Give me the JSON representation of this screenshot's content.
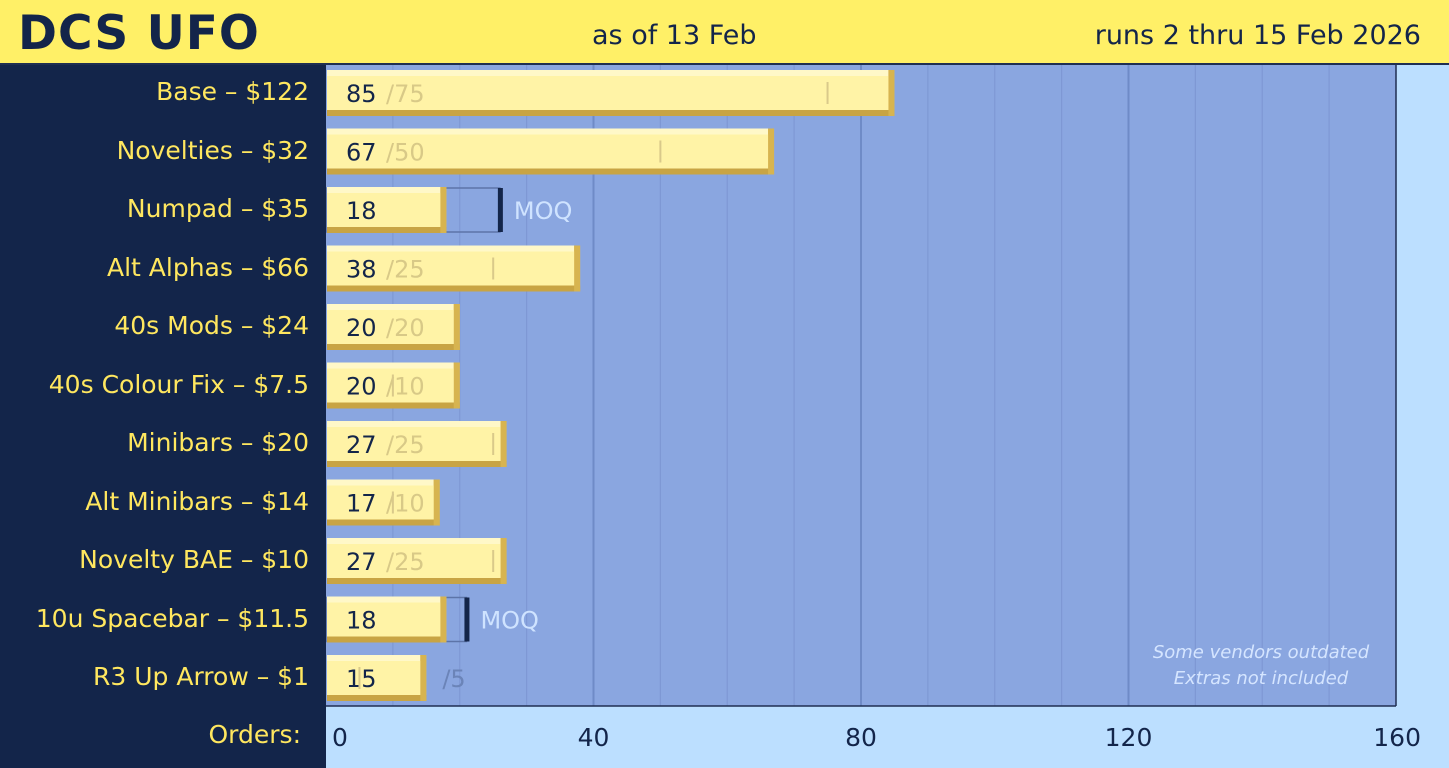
{
  "header": {
    "brand": "DCS UFO",
    "as_of": "as of 13 Feb",
    "runs": "runs 2 thru 15 Feb 2026"
  },
  "axis": {
    "label": "Orders:",
    "ticks": [
      "0",
      "40",
      "80",
      "120",
      "160"
    ]
  },
  "note": {
    "line1": "Some vendors outdated",
    "line2": "Extras not included"
  },
  "colors": {
    "header_bg": "#fff067",
    "panel_bg": "#13254a",
    "plot_bg": "#8aa6e0",
    "outer_bg": "#bcdfff",
    "bar_fill": "#fff3a6",
    "bar_bevel": "#e2c36a",
    "label_color": "#ffe75f"
  },
  "chart_data": {
    "type": "bar",
    "orientation": "horizontal",
    "xlim": [
      0,
      160
    ],
    "xlabel": "Orders:",
    "grid": true,
    "categories": [
      "Base – $122",
      "Novelties – $32",
      "Numpad – $35",
      "Alt Alphas – $66",
      "40s Mods – $24",
      "40s Colour Fix – $7.5",
      "Minibars – $20",
      "Alt Minibars – $14",
      "Novelty BAE – $10",
      "10u Spacebar – $11.5",
      "R3 Up Arrow – $1"
    ],
    "bars": [
      {
        "value": 85,
        "value_label": "85",
        "target": 75,
        "target_label": "/75",
        "moq": false
      },
      {
        "value": 67,
        "value_label": "67",
        "target": 50,
        "target_label": "/50",
        "moq": false
      },
      {
        "value": 18,
        "value_label": "18",
        "target": 26,
        "target_label": "MOQ",
        "moq": true
      },
      {
        "value": 38,
        "value_label": "38",
        "target": 25,
        "target_label": "/25",
        "moq": false
      },
      {
        "value": 20,
        "value_label": "20",
        "target": 20,
        "target_label": "/20",
        "moq": false
      },
      {
        "value": 20,
        "value_label": "20",
        "target": 10,
        "target_label": "/10",
        "moq": false
      },
      {
        "value": 27,
        "value_label": "27",
        "target": 25,
        "target_label": "/25",
        "moq": false
      },
      {
        "value": 17,
        "value_label": "17",
        "target": 10,
        "target_label": "/10",
        "moq": false
      },
      {
        "value": 27,
        "value_label": "27",
        "target": 25,
        "target_label": "/25",
        "moq": false
      },
      {
        "value": 18,
        "value_label": "18",
        "target": 21,
        "target_label": "MOQ",
        "moq": true
      },
      {
        "value": 15,
        "value_label": "15",
        "target": 5,
        "target_label": "/5",
        "moq": false
      }
    ]
  }
}
